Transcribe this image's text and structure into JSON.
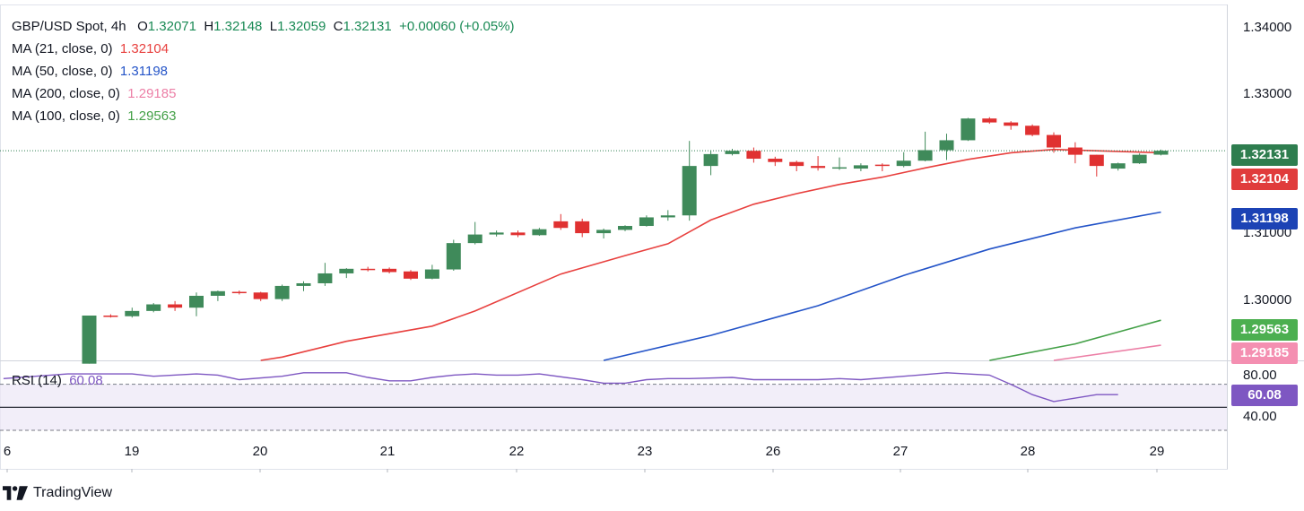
{
  "legend": {
    "symbol": "GBP/USD Spot, 4h",
    "open_label": "O",
    "open": "1.32071",
    "high_label": "H",
    "high": "1.32148",
    "low_label": "L",
    "low": "1.32059",
    "close_label": "C",
    "close": "1.32131",
    "change": "+0.00060 (+0.05%)",
    "ma": [
      {
        "label": "MA (21, close, 0)",
        "value": "1.32104",
        "color": "#e8403e"
      },
      {
        "label": "MA (50, close, 0)",
        "value": "1.31198",
        "color": "#2454c8"
      },
      {
        "label": "MA (200, close, 0)",
        "value": "1.29185",
        "color": "#ec7fa6"
      },
      {
        "label": "MA (100, close, 0)",
        "value": "1.29563",
        "color": "#43a047"
      }
    ]
  },
  "rsi_legend": {
    "label": "RSI (14)",
    "value": "60.08"
  },
  "price_tags": [
    {
      "value": "1.32131",
      "color": "#2e7d4f"
    },
    {
      "value": "1.32104",
      "color": "#e03c3c"
    },
    {
      "value": "1.31198",
      "color": "#1c43b5"
    },
    {
      "value": "1.29563",
      "color": "#4caf50"
    },
    {
      "value": "1.29185",
      "color": "#f48fb1"
    },
    {
      "value": "60.08",
      "color": "#7e57c2"
    }
  ],
  "y_axis_labels": [
    "1.34000",
    "1.33000",
    "1.31000",
    "1.30000"
  ],
  "rsi_axis_labels": [
    "80.00",
    "40.00"
  ],
  "brand": "TradingView",
  "chart_data": {
    "type": "candlestick",
    "title": "GBP/USD Spot, 4h",
    "x_tick_labels": [
      "6",
      "19",
      "20",
      "21",
      "22",
      "23",
      "26",
      "27",
      "28",
      "29"
    ],
    "ylim": [
      1.2895,
      1.3435
    ],
    "rsi_ylim": [
      30,
      90
    ],
    "rsi_levels": [
      70,
      50,
      30
    ],
    "candles": [
      {
        "o": 1.289,
        "h": 1.2963,
        "l": 1.289,
        "c": 1.2963
      },
      {
        "o": 1.2963,
        "h": 1.2965,
        "l": 1.296,
        "c": 1.2962
      },
      {
        "o": 1.2962,
        "h": 1.2975,
        "l": 1.296,
        "c": 1.297
      },
      {
        "o": 1.297,
        "h": 1.2982,
        "l": 1.2968,
        "c": 1.298
      },
      {
        "o": 1.298,
        "h": 1.2985,
        "l": 1.297,
        "c": 1.2975
      },
      {
        "o": 1.2975,
        "h": 1.2998,
        "l": 1.2962,
        "c": 1.2993
      },
      {
        "o": 1.2993,
        "h": 1.3001,
        "l": 1.2985,
        "c": 1.3
      },
      {
        "o": 1.2999,
        "h": 1.3001,
        "l": 1.2995,
        "c": 1.2998
      },
      {
        "o": 1.2998,
        "h": 1.2999,
        "l": 1.2985,
        "c": 1.2988
      },
      {
        "o": 1.2988,
        "h": 1.301,
        "l": 1.2985,
        "c": 1.3008
      },
      {
        "o": 1.3008,
        "h": 1.3015,
        "l": 1.3,
        "c": 1.3012
      },
      {
        "o": 1.3012,
        "h": 1.3043,
        "l": 1.3008,
        "c": 1.3027
      },
      {
        "o": 1.3027,
        "h": 1.3035,
        "l": 1.302,
        "c": 1.3034
      },
      {
        "o": 1.3034,
        "h": 1.3037,
        "l": 1.303,
        "c": 1.3033
      },
      {
        "o": 1.3034,
        "h": 1.3036,
        "l": 1.3027,
        "c": 1.3029
      },
      {
        "o": 1.303,
        "h": 1.3032,
        "l": 1.3017,
        "c": 1.3019
      },
      {
        "o": 1.3019,
        "h": 1.304,
        "l": 1.3018,
        "c": 1.3033
      },
      {
        "o": 1.3033,
        "h": 1.3078,
        "l": 1.3031,
        "c": 1.3073
      },
      {
        "o": 1.3073,
        "h": 1.3105,
        "l": 1.3071,
        "c": 1.3086
      },
      {
        "o": 1.3086,
        "h": 1.3092,
        "l": 1.3083,
        "c": 1.3089
      },
      {
        "o": 1.3089,
        "h": 1.3092,
        "l": 1.3082,
        "c": 1.3085
      },
      {
        "o": 1.3085,
        "h": 1.3096,
        "l": 1.3084,
        "c": 1.3094
      },
      {
        "o": 1.3106,
        "h": 1.3117,
        "l": 1.3093,
        "c": 1.3096
      },
      {
        "o": 1.3106,
        "h": 1.311,
        "l": 1.3082,
        "c": 1.3088
      },
      {
        "o": 1.3088,
        "h": 1.3095,
        "l": 1.308,
        "c": 1.3093
      },
      {
        "o": 1.3093,
        "h": 1.31,
        "l": 1.3091,
        "c": 1.3099
      },
      {
        "o": 1.3099,
        "h": 1.3115,
        "l": 1.3098,
        "c": 1.3112
      },
      {
        "o": 1.3112,
        "h": 1.3123,
        "l": 1.3107,
        "c": 1.3115
      },
      {
        "o": 1.3115,
        "h": 1.3228,
        "l": 1.3107,
        "c": 1.319
      },
      {
        "o": 1.319,
        "h": 1.3214,
        "l": 1.3176,
        "c": 1.3208
      },
      {
        "o": 1.3208,
        "h": 1.3216,
        "l": 1.3206,
        "c": 1.3213
      },
      {
        "o": 1.3213,
        "h": 1.3218,
        "l": 1.3195,
        "c": 1.3201
      },
      {
        "o": 1.3201,
        "h": 1.3204,
        "l": 1.319,
        "c": 1.3196
      },
      {
        "o": 1.3196,
        "h": 1.3198,
        "l": 1.3182,
        "c": 1.319
      },
      {
        "o": 1.319,
        "h": 1.3205,
        "l": 1.3183,
        "c": 1.3187
      },
      {
        "o": 1.3187,
        "h": 1.3203,
        "l": 1.3184,
        "c": 1.3188
      },
      {
        "o": 1.3186,
        "h": 1.3194,
        "l": 1.3182,
        "c": 1.3191
      },
      {
        "o": 1.3192,
        "h": 1.3194,
        "l": 1.3182,
        "c": 1.319
      },
      {
        "o": 1.319,
        "h": 1.3211,
        "l": 1.3188,
        "c": 1.3198
      },
      {
        "o": 1.3198,
        "h": 1.3242,
        "l": 1.3197,
        "c": 1.3214
      },
      {
        "o": 1.3214,
        "h": 1.3239,
        "l": 1.3199,
        "c": 1.3229
      },
      {
        "o": 1.3229,
        "h": 1.3263,
        "l": 1.3228,
        "c": 1.3262
      },
      {
        "o": 1.3262,
        "h": 1.3264,
        "l": 1.3254,
        "c": 1.3256
      },
      {
        "o": 1.3256,
        "h": 1.3258,
        "l": 1.3245,
        "c": 1.3251
      },
      {
        "o": 1.3251,
        "h": 1.3253,
        "l": 1.3235,
        "c": 1.3237
      },
      {
        "o": 1.3237,
        "h": 1.3241,
        "l": 1.321,
        "c": 1.3218
      },
      {
        "o": 1.3218,
        "h": 1.3226,
        "l": 1.3194,
        "c": 1.3207
      },
      {
        "o": 1.3207,
        "h": 1.3207,
        "l": 1.3174,
        "c": 1.319
      },
      {
        "o": 1.3186,
        "h": 1.3195,
        "l": 1.3183,
        "c": 1.3194
      },
      {
        "o": 1.3194,
        "h": 1.3209,
        "l": 1.3193,
        "c": 1.3207
      },
      {
        "o": 1.32071,
        "h": 1.32148,
        "l": 1.32059,
        "c": 1.32131
      }
    ],
    "series": [
      {
        "name": "MA (21, close, 0)",
        "color": "#e8403e",
        "points": [
          [
            8,
            1.2895
          ],
          [
            9,
            1.29
          ],
          [
            12,
            1.2924
          ],
          [
            16,
            1.2947
          ],
          [
            18,
            1.297
          ],
          [
            22,
            1.3026
          ],
          [
            25,
            1.3054
          ],
          [
            27,
            1.3072
          ],
          [
            29,
            1.3108
          ],
          [
            31,
            1.3132
          ],
          [
            33,
            1.3148
          ],
          [
            35,
            1.3162
          ],
          [
            37,
            1.3173
          ],
          [
            39,
            1.3187
          ],
          [
            41,
            1.32
          ],
          [
            43,
            1.321
          ],
          [
            45,
            1.3215
          ],
          [
            47,
            1.3213
          ],
          [
            50,
            1.321
          ]
        ]
      },
      {
        "name": "MA (50, close, 0)",
        "color": "#2454c8",
        "points": [
          [
            24,
            1.2895
          ],
          [
            29,
            1.2933
          ],
          [
            34,
            1.2978
          ],
          [
            38,
            1.3024
          ],
          [
            42,
            1.3064
          ],
          [
            46,
            1.3096
          ],
          [
            50,
            1.312
          ]
        ]
      },
      {
        "name": "MA (100, close, 0)",
        "color": "#43a047",
        "points": [
          [
            42,
            1.2895
          ],
          [
            46,
            1.292
          ],
          [
            50,
            1.2956
          ]
        ]
      },
      {
        "name": "MA (200, close, 0)",
        "color": "#ec7fa6",
        "points": [
          [
            45,
            1.2895
          ],
          [
            50,
            1.2918
          ]
        ]
      }
    ],
    "rsi": {
      "name": "RSI (14)",
      "color": "#7e57c2",
      "points": [
        [
          0,
          75
        ],
        [
          3,
          79
        ],
        [
          6,
          79
        ],
        [
          7,
          77
        ],
        [
          9,
          79
        ],
        [
          10,
          78
        ],
        [
          11,
          74
        ],
        [
          13,
          77
        ],
        [
          14,
          80
        ],
        [
          15,
          80
        ],
        [
          16,
          80
        ],
        [
          17,
          76
        ],
        [
          18,
          73
        ],
        [
          19,
          73
        ],
        [
          20,
          76
        ],
        [
          21,
          78
        ],
        [
          22,
          79
        ],
        [
          23,
          78
        ],
        [
          24,
          78
        ],
        [
          25,
          79
        ],
        [
          27,
          74
        ],
        [
          28,
          71
        ],
        [
          29,
          71
        ],
        [
          30,
          74
        ],
        [
          31,
          75
        ],
        [
          32,
          75
        ],
        [
          34,
          76
        ],
        [
          35,
          74
        ],
        [
          38,
          74
        ],
        [
          39,
          75
        ],
        [
          40,
          74
        ],
        [
          42,
          77
        ],
        [
          44,
          80
        ],
        [
          46,
          78
        ],
        [
          47,
          70
        ],
        [
          48,
          61
        ],
        [
          49,
          55
        ],
        [
          50,
          58
        ],
        [
          51,
          61
        ],
        [
          52,
          61
        ]
      ]
    }
  }
}
